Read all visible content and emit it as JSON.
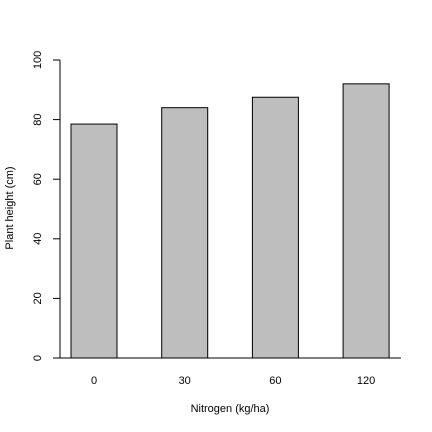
{
  "chart_data": {
    "type": "bar",
    "x_label": "Nitrogen (kg/ha)",
    "y_label": "Plant height (cm)",
    "categories": [
      "0",
      "30",
      "60",
      "120"
    ],
    "values": [
      78.5,
      84,
      87.5,
      92
    ],
    "color": "#bebebe",
    "ylim": [
      0,
      100
    ],
    "yticks": [
      0,
      20,
      40,
      60,
      80,
      100
    ]
  }
}
